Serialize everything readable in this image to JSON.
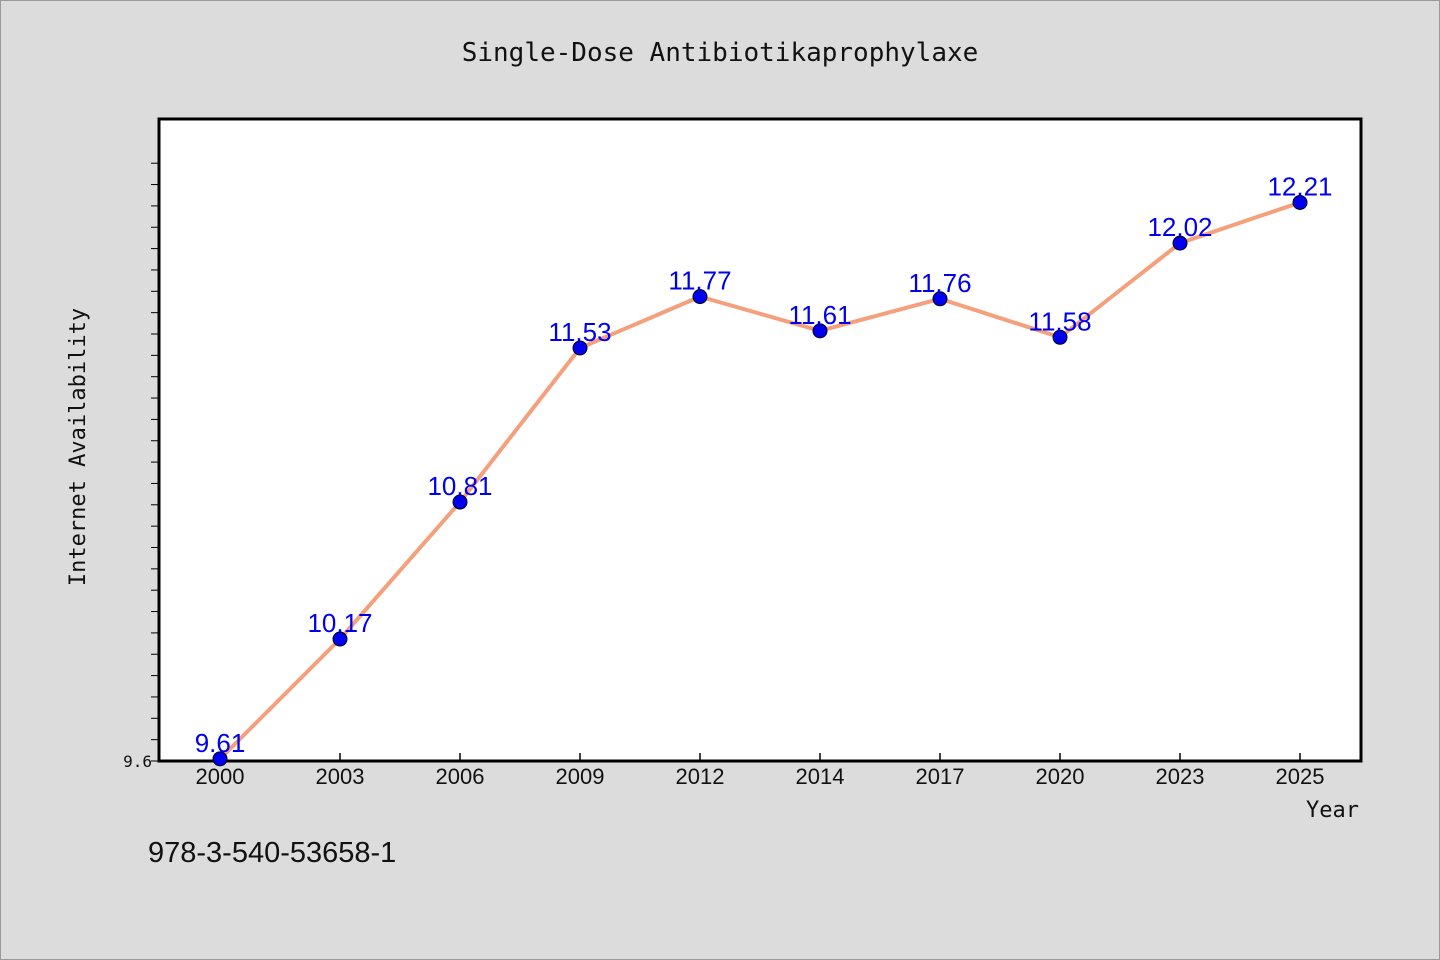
{
  "chart_data": {
    "type": "line",
    "title": "Single-Dose Antibiotikaprophylaxe",
    "xlabel": "Year",
    "ylabel": "Internet Availability",
    "categories": [
      "2000",
      "2003",
      "2006",
      "2009",
      "2012",
      "2014",
      "2017",
      "2020",
      "2023",
      "2025"
    ],
    "series": [
      {
        "values": [
          9.61,
          10.17,
          10.81,
          11.53,
          11.77,
          11.61,
          11.76,
          11.58,
          12.02,
          12.21
        ],
        "data_labels": [
          "9.61",
          "10.17",
          "10.81",
          "11.53",
          "11.77",
          "11.61",
          "11.76",
          "11.58",
          "12.02",
          "12.21"
        ]
      }
    ],
    "ytick_labels": [
      "9.6"
    ],
    "ylim": [
      9.6,
      12.6
    ],
    "grid": false,
    "colors": {
      "line": "#f4a07c",
      "marker": "#0000ee",
      "data_label": "#0000ee",
      "background": "#dcdcdc",
      "plot_background": "#ffffff"
    }
  },
  "footnote": "978-3-540-53658-1"
}
